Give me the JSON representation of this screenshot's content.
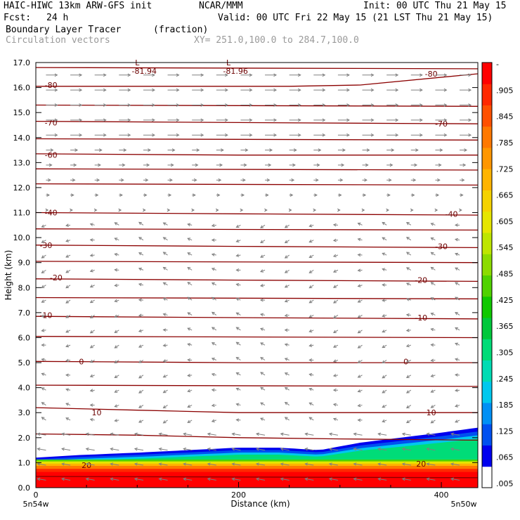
{
  "header": {
    "model": "HAIC-HIWC 13km ARW-GFS init",
    "org": "NCAR/MMM",
    "init": "Init: 00 UTC Thu 21 May 15",
    "fcst_label": "Fcst:",
    "fcst_value": "24 h",
    "valid": "Valid: 00 UTC Fri 22 May 15 (21 LST Thu 21 May 15)",
    "field": "Boundary Layer Tracer",
    "field_units": "(fraction)",
    "vectors": "Circulation vectors",
    "xy": "XY= 251.0,100.0 to 284.7,100.0"
  },
  "colors": {
    "isotherm": "#8b0000",
    "vector": "#808080",
    "colorbar": [
      "#ffffff",
      "#0000ee",
      "#0050f0",
      "#0090f5",
      "#00c8ee",
      "#00dcb4",
      "#00dc78",
      "#00c83c",
      "#10c800",
      "#50d200",
      "#8cdc00",
      "#bee600",
      "#e6e600",
      "#f5d200",
      "#ffb400",
      "#ff9600",
      "#ff7800",
      "#ff5000",
      "#ff2800",
      "#ff0000"
    ]
  },
  "chart_data": {
    "type": "heatmap",
    "title": "Boundary Layer Tracer",
    "xlabel": "Distance (km)",
    "ylabel": "Height (km)",
    "xlim": [
      0,
      436
    ],
    "ylim": [
      0,
      17
    ],
    "x_ticks": [
      "0",
      "200",
      "400"
    ],
    "y_ticks": [
      "0.0",
      "1.0",
      "2.0",
      "3.0",
      "4.0",
      "5.0",
      "6.0",
      "7.0",
      "8.0",
      "9.0",
      "10.0",
      "11.0",
      "12.0",
      "13.0",
      "14.0",
      "15.0",
      "16.0",
      "17.0"
    ],
    "x_endpoints": [
      "5n54w",
      "5n50w"
    ],
    "colorbar_ticks": [
      "-",
      ".905",
      ".845",
      ".785",
      ".725",
      ".665",
      ".605",
      ".545",
      ".485",
      ".425",
      ".365",
      ".305",
      ".245",
      ".185",
      ".125",
      ".065",
      ".005"
    ],
    "tracer_top_km": [
      [
        0,
        1.2
      ],
      [
        40,
        1.3
      ],
      [
        100,
        1.4
      ],
      [
        150,
        1.5
      ],
      [
        200,
        1.6
      ],
      [
        240,
        1.6
      ],
      [
        280,
        1.5
      ],
      [
        320,
        1.8
      ],
      [
        360,
        2.0
      ],
      [
        400,
        2.2
      ],
      [
        436,
        2.4
      ]
    ],
    "isotherms": [
      {
        "label": "20",
        "heights": [
          [
            0,
            2.15
          ],
          [
            100,
            2.1
          ],
          [
            200,
            2.0
          ],
          [
            300,
            1.95
          ],
          [
            436,
            1.9
          ]
        ],
        "label_pos": [
          [
            50,
            0.9
          ],
          [
            380,
            0.95
          ]
        ]
      },
      {
        "label": "10",
        "heights": [
          [
            0,
            3.2
          ],
          [
            100,
            3.1
          ],
          [
            200,
            3.0
          ],
          [
            300,
            3.0
          ],
          [
            436,
            3.0
          ]
        ],
        "label_pos": [
          [
            60,
            3.0
          ],
          [
            390,
            3.0
          ]
        ]
      },
      {
        "label": "0",
        "heights": [
          [
            0,
            5.05
          ],
          [
            200,
            5.0
          ],
          [
            436,
            5.0
          ]
        ],
        "label_pos": [
          [
            45,
            5.05
          ],
          [
            365,
            5.05
          ]
        ]
      },
      {
        "label": "-10",
        "heights": [
          [
            0,
            6.85
          ],
          [
            200,
            6.8
          ],
          [
            436,
            6.75
          ]
        ],
        "label_pos": [
          [
            10,
            6.9
          ],
          [
            380,
            6.8
          ]
        ]
      },
      {
        "label": "-20",
        "heights": [
          [
            0,
            8.35
          ],
          [
            200,
            8.3
          ],
          [
            436,
            8.25
          ]
        ],
        "label_pos": [
          [
            20,
            8.4
          ],
          [
            380,
            8.3
          ]
        ]
      },
      {
        "label": "-30",
        "heights": [
          [
            0,
            9.7
          ],
          [
            200,
            9.65
          ],
          [
            436,
            9.6
          ]
        ],
        "label_pos": [
          [
            10,
            9.7
          ],
          [
            400,
            9.65
          ]
        ]
      },
      {
        "label": "-40",
        "heights": [
          [
            0,
            11.0
          ],
          [
            200,
            10.95
          ],
          [
            436,
            10.9
          ]
        ],
        "label_pos": [
          [
            15,
            11.0
          ],
          [
            410,
            10.95
          ]
        ]
      },
      {
        "label": "-60",
        "heights": [
          [
            0,
            13.35
          ],
          [
            200,
            13.3
          ],
          [
            436,
            13.3
          ]
        ],
        "label_pos": [
          [
            15,
            13.3
          ],
          null
        ]
      },
      {
        "label": "-70",
        "heights": [
          [
            0,
            14.65
          ],
          [
            200,
            14.6
          ],
          [
            436,
            14.55
          ]
        ],
        "label_pos": [
          [
            15,
            14.6
          ],
          [
            400,
            14.55
          ]
        ]
      },
      {
        "label": "-80",
        "heights": [
          [
            0,
            16.05
          ],
          [
            250,
            16.05
          ],
          [
            320,
            16.1
          ],
          [
            436,
            16.55
          ]
        ],
        "label_pos": [
          [
            15,
            16.1
          ],
          [
            390,
            16.55
          ]
        ]
      },
      {
        "label": "",
        "heights": [
          [
            0,
            16.8
          ],
          [
            436,
            16.75
          ]
        ],
        "label_pos": []
      },
      {
        "label": "",
        "heights": [
          [
            0,
            15.3
          ],
          [
            436,
            15.25
          ]
        ],
        "label_pos": []
      },
      {
        "label": "",
        "heights": [
          [
            0,
            13.95
          ],
          [
            436,
            13.9
          ]
        ],
        "label_pos": []
      },
      {
        "label": "",
        "heights": [
          [
            0,
            12.75
          ],
          [
            436,
            12.7
          ]
        ],
        "label_pos": []
      },
      {
        "label": "",
        "heights": [
          [
            0,
            12.15
          ],
          [
            436,
            12.1
          ]
        ],
        "label_pos": []
      },
      {
        "label": "",
        "heights": [
          [
            0,
            10.35
          ],
          [
            436,
            10.3
          ]
        ],
        "label_pos": []
      },
      {
        "label": "",
        "heights": [
          [
            0,
            9.05
          ],
          [
            436,
            9.0
          ]
        ],
        "label_pos": []
      },
      {
        "label": "",
        "heights": [
          [
            0,
            7.6
          ],
          [
            436,
            7.55
          ]
        ],
        "label_pos": []
      },
      {
        "label": "",
        "heights": [
          [
            0,
            6.05
          ],
          [
            436,
            6.0
          ]
        ],
        "label_pos": []
      },
      {
        "label": "",
        "heights": [
          [
            0,
            4.1
          ],
          [
            436,
            4.05
          ]
        ],
        "label_pos": []
      },
      {
        "label": "",
        "heights": [
          [
            0,
            0.45
          ],
          [
            436,
            0.4
          ]
        ],
        "label_pos": []
      }
    ],
    "minima": [
      {
        "symbol": "L",
        "value": "-81.94",
        "x": 100,
        "y": 16.95
      },
      {
        "symbol": "L",
        "value": "-81.96",
        "x": 190,
        "y": 16.95
      }
    ]
  }
}
